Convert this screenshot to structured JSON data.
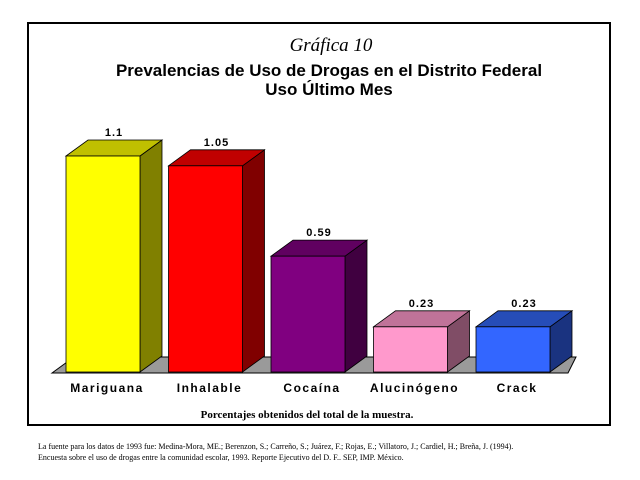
{
  "chart_data": {
    "type": "bar",
    "heading": "Gráfica 10",
    "title_line1": "Prevalencias de Uso de Drogas en el Distrito Federal",
    "title_line2": "Uso Último Mes",
    "categories": [
      "Mariguana",
      "Inhalable",
      "Cocaína",
      "Alucinógeno",
      "Crack"
    ],
    "values": [
      1.1,
      1.05,
      0.59,
      0.23,
      0.23
    ],
    "value_labels": [
      "1.1",
      "1.05",
      "0.59",
      "0.23",
      "0.23"
    ],
    "ylim": [
      0,
      1.1
    ],
    "grid": false,
    "footer_note": "Porcentajes obtenidos del total de la muestra.",
    "colors": {
      "front": [
        "#ffff00",
        "#ff0000",
        "#800080",
        "#ff99cc",
        "#3366ff"
      ],
      "side": [
        "#808000",
        "#800000",
        "#400040",
        "#804d66",
        "#1a3380"
      ],
      "top": [
        "#c0c000",
        "#c00000",
        "#600060",
        "#c07399",
        "#264db8"
      ],
      "floor": "#9a9a9a"
    }
  },
  "source_line1": "La fuente para los datos de 1993 fue: Medina-Mora, ME.; Berenzon, S.; Carreño, S.; Juárez, F.; Rojas, E.; Villatoro, J.; Cardiel, H.; Breña, J. (1994).",
  "source_line2": "Encuesta sobre el uso de drogas entre la comunidad escolar, 1993. Reporte Ejecutivo del D. F.. SEP, IMP. México."
}
